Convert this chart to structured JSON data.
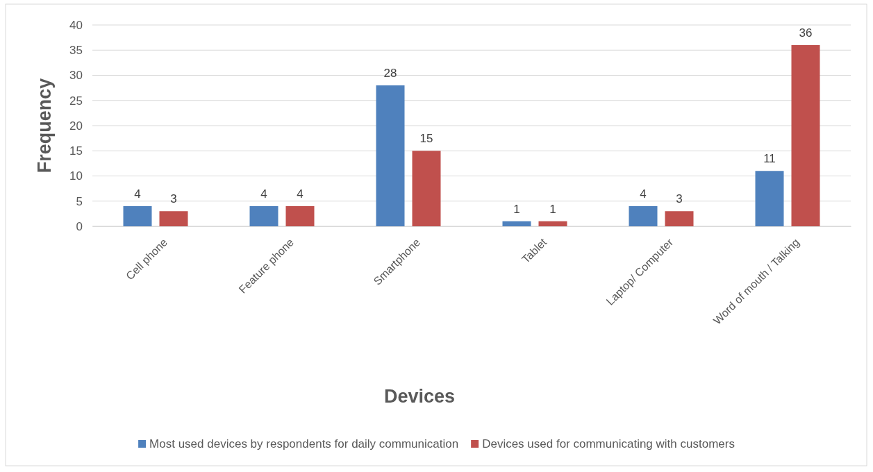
{
  "chart_data": {
    "type": "bar",
    "xlabel": "Devices",
    "ylabel": "Frequency",
    "categories": [
      "Cell phone",
      "Feature phone",
      "Smartphone",
      "Tablet",
      "Laptop/ Computer",
      "Word of mouth / Talking"
    ],
    "series": [
      {
        "name": "Most used devices by respondents for daily communication",
        "color": "#4f81bd",
        "values": [
          4,
          4,
          28,
          1,
          4,
          11
        ]
      },
      {
        "name": "Devices used for communicating with customers",
        "color": "#c0504d",
        "values": [
          3,
          4,
          15,
          1,
          3,
          36
        ]
      }
    ],
    "ylim": [
      0,
      40
    ],
    "yticks": [
      0,
      5,
      10,
      15,
      20,
      25,
      30,
      35,
      40
    ],
    "grid": "y",
    "legend": "bottom",
    "data_labels": true
  }
}
